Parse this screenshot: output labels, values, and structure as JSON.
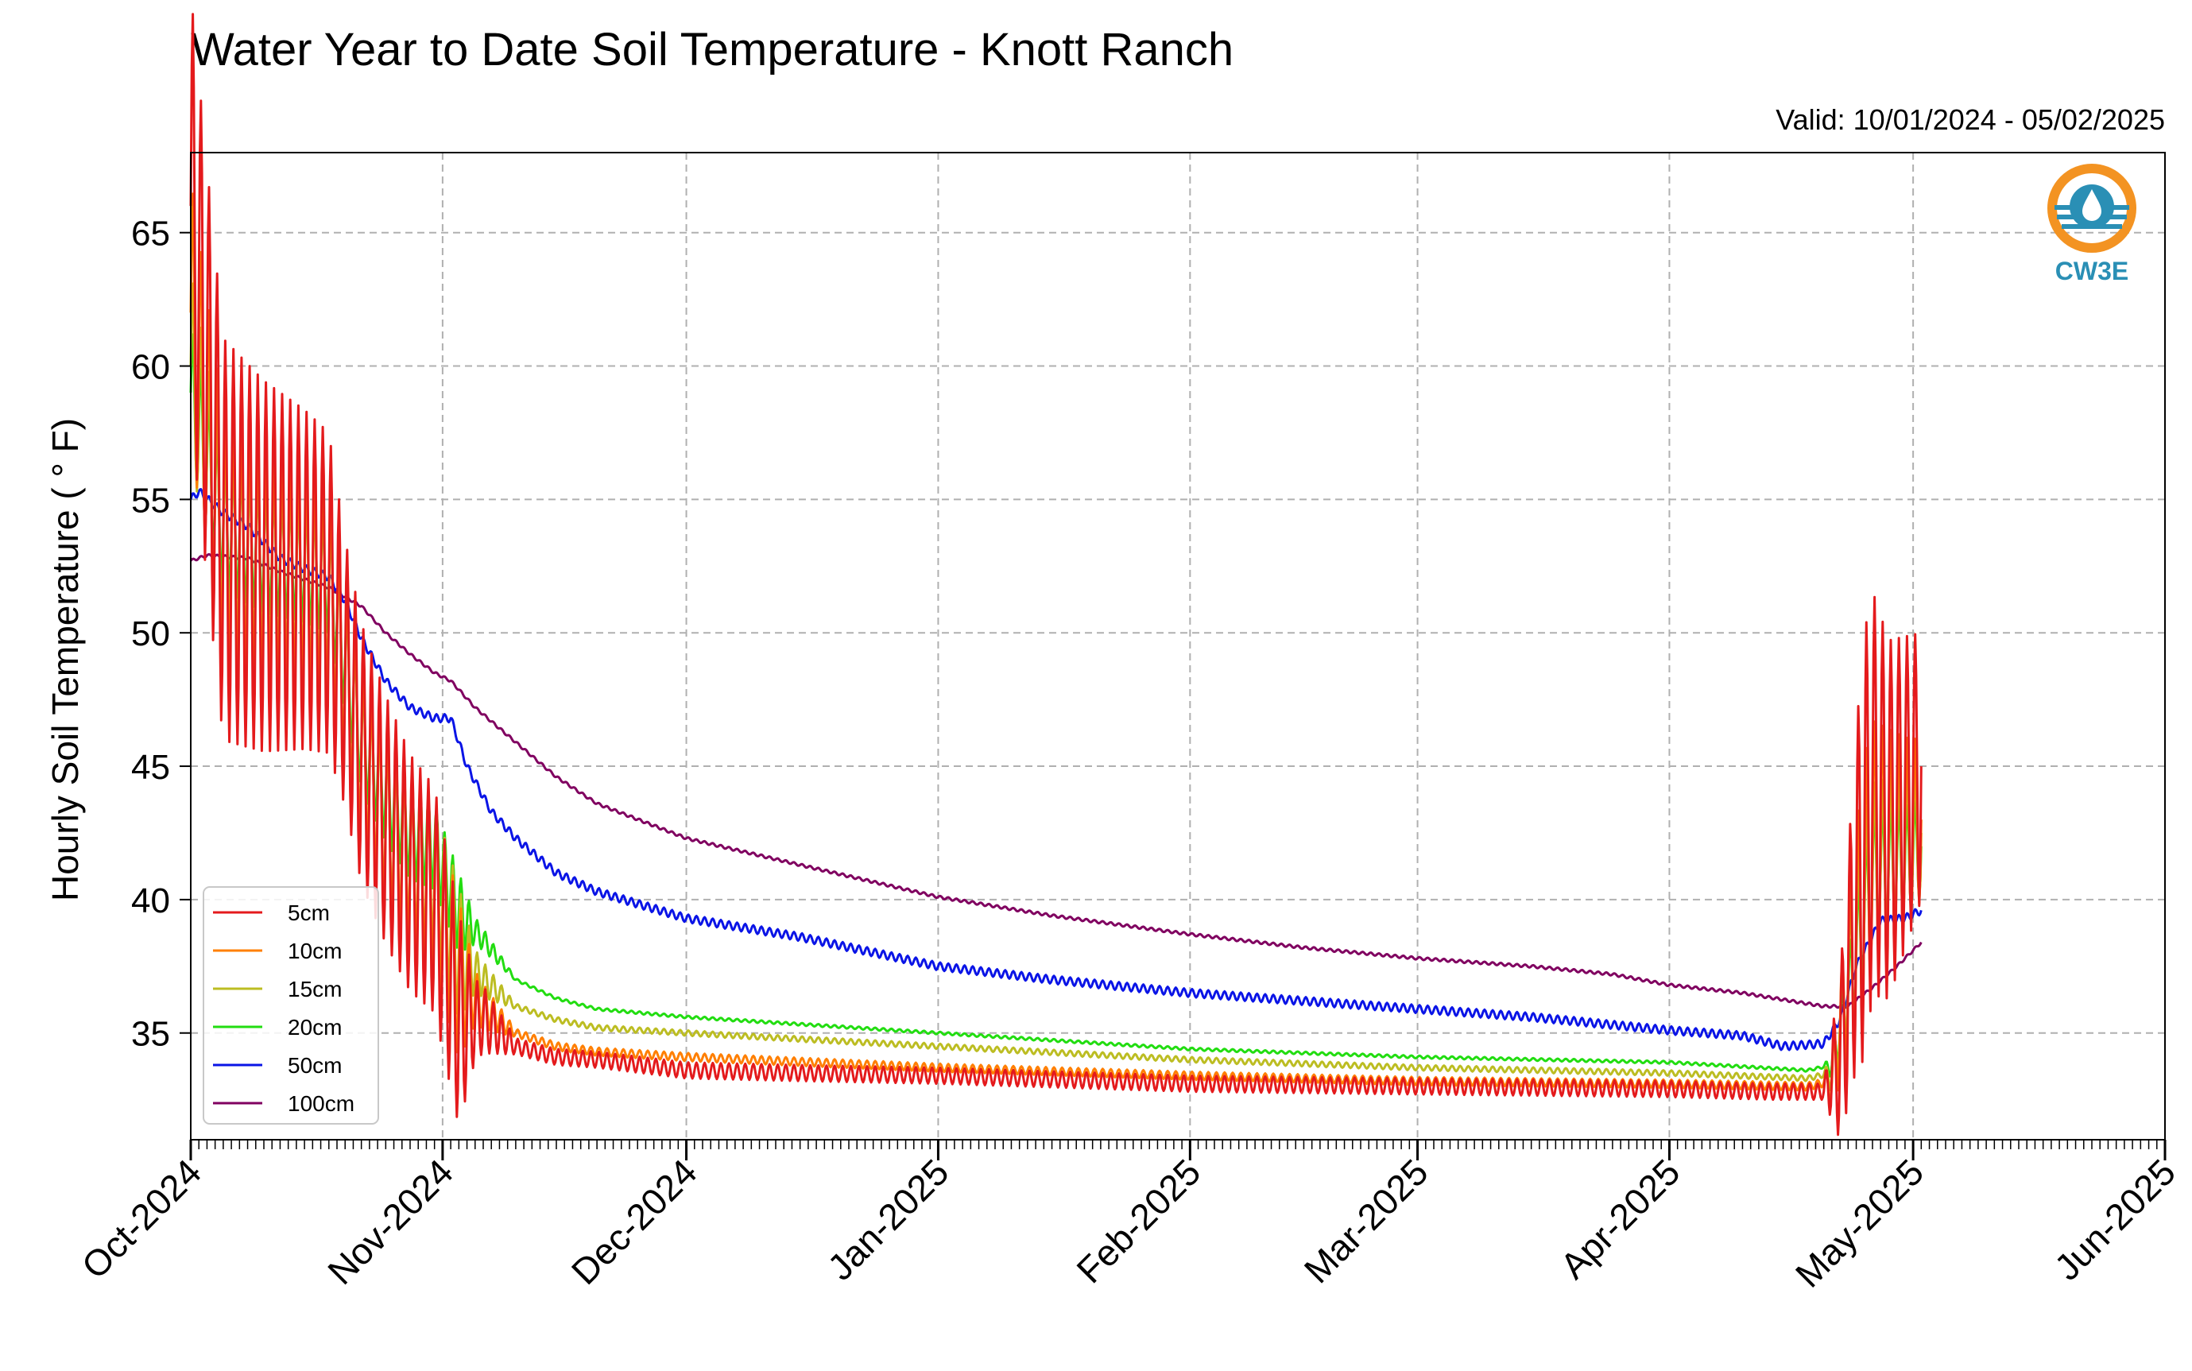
{
  "chart_data": {
    "type": "line",
    "title": "Water Year to Date Soil Temperature - Knott Ranch",
    "subtitle": "Valid: 10/01/2024 - 05/02/2025",
    "ylabel": "Hourly Soil Temperature ( $^\\circ$F)",
    "ylabel_display": "Hourly Soil Temperature ( ° F)",
    "xlabel": "",
    "xlim": [
      "2024-10-01",
      "2025-06-01"
    ],
    "ylim": [
      31,
      68
    ],
    "yticks": [
      35,
      40,
      45,
      50,
      55,
      60,
      65
    ],
    "xtick_labels": [
      "Oct-2024",
      "Nov-2024",
      "Dec-2024",
      "Jan-2025",
      "Feb-2025",
      "Mar-2025",
      "Apr-2025",
      "May-2025",
      "Jun-2025"
    ],
    "xtick_dates": [
      "2024-10-01",
      "2024-11-01",
      "2024-12-01",
      "2025-01-01",
      "2025-02-01",
      "2025-03-01",
      "2025-04-01",
      "2025-05-01",
      "2025-06-01"
    ],
    "grid": true,
    "legend_position": "lower-left",
    "logo_text": "CW3E",
    "series": [
      {
        "name": "5cm",
        "color": "#e41a1c",
        "points": [
          [
            "2024-10-01",
            66
          ],
          [
            "2024-10-05",
            53.5
          ],
          [
            "2024-10-10",
            52.5
          ],
          [
            "2024-10-15",
            52
          ],
          [
            "2024-10-18",
            51.5
          ],
          [
            "2024-10-22",
            45.5
          ],
          [
            "2024-10-25",
            43
          ],
          [
            "2024-10-28",
            41
          ],
          [
            "2024-10-31",
            40
          ],
          [
            "2024-11-03",
            35.5
          ],
          [
            "2024-11-06",
            35.5
          ],
          [
            "2024-11-10",
            34.5
          ],
          [
            "2024-11-15",
            34.1
          ],
          [
            "2024-11-20",
            34.0
          ],
          [
            "2024-12-01",
            33.6
          ],
          [
            "2024-12-15",
            33.5
          ],
          [
            "2025-01-01",
            33.4
          ],
          [
            "2025-02-01",
            33.1
          ],
          [
            "2025-03-01",
            33.0
          ],
          [
            "2025-04-01",
            32.9
          ],
          [
            "2025-04-14",
            32.8
          ],
          [
            "2025-04-20",
            32.8
          ],
          [
            "2025-04-22",
            34
          ],
          [
            "2025-04-24",
            40
          ],
          [
            "2025-04-26",
            44
          ],
          [
            "2025-04-28",
            43
          ],
          [
            "2025-04-30",
            44
          ],
          [
            "2025-05-02",
            45
          ]
        ],
        "diurnal_amplitude": [
          [
            "2024-10-01",
            8
          ],
          [
            "2024-10-18",
            6
          ],
          [
            "2024-10-20",
            5
          ],
          [
            "2024-11-03",
            4
          ],
          [
            "2024-11-05",
            1.5
          ],
          [
            "2024-11-10",
            0.3
          ],
          [
            "2025-04-20",
            0.3
          ],
          [
            "2025-04-22",
            3
          ],
          [
            "2025-04-25",
            8
          ],
          [
            "2025-05-02",
            5
          ]
        ]
      },
      {
        "name": "10cm",
        "color": "#ff7f00",
        "points": [
          [
            "2024-10-01",
            62
          ],
          [
            "2024-10-05",
            53.5
          ],
          [
            "2024-10-10",
            52.5
          ],
          [
            "2024-10-15",
            52
          ],
          [
            "2024-10-18",
            51.5
          ],
          [
            "2024-10-22",
            45.5
          ],
          [
            "2024-10-25",
            43
          ],
          [
            "2024-10-28",
            41.5
          ],
          [
            "2024-10-31",
            40.5
          ],
          [
            "2024-11-03",
            37
          ],
          [
            "2024-11-06",
            36
          ],
          [
            "2024-11-10",
            35
          ],
          [
            "2024-11-15",
            34.5
          ],
          [
            "2024-11-20",
            34.3
          ],
          [
            "2024-12-01",
            34.1
          ],
          [
            "2025-01-01",
            33.7
          ],
          [
            "2025-02-01",
            33.4
          ],
          [
            "2025-03-01",
            33.2
          ],
          [
            "2025-04-01",
            33.1
          ],
          [
            "2025-04-18",
            33.0
          ],
          [
            "2025-04-21",
            33.2
          ],
          [
            "2025-04-23",
            37
          ],
          [
            "2025-04-26",
            42
          ],
          [
            "2025-04-30",
            42.5
          ],
          [
            "2025-05-02",
            43
          ]
        ],
        "diurnal_amplitude": [
          [
            "2024-10-01",
            5
          ],
          [
            "2024-10-18",
            4
          ],
          [
            "2024-10-20",
            3.5
          ],
          [
            "2024-11-03",
            3
          ],
          [
            "2024-11-05",
            1
          ],
          [
            "2024-11-10",
            0.15
          ],
          [
            "2025-04-20",
            0.15
          ],
          [
            "2025-04-22",
            2
          ],
          [
            "2025-04-25",
            5
          ],
          [
            "2025-05-02",
            3
          ]
        ]
      },
      {
        "name": "15cm",
        "color": "#bcbd22",
        "points": [
          [
            "2024-10-01",
            60
          ],
          [
            "2024-10-05",
            53.5
          ],
          [
            "2024-10-10",
            52.5
          ],
          [
            "2024-10-15",
            52
          ],
          [
            "2024-10-18",
            51.5
          ],
          [
            "2024-10-22",
            45.5
          ],
          [
            "2024-10-25",
            43
          ],
          [
            "2024-10-28",
            41.5
          ],
          [
            "2024-10-31",
            41
          ],
          [
            "2024-11-03",
            38
          ],
          [
            "2024-11-06",
            37
          ],
          [
            "2024-11-10",
            36
          ],
          [
            "2024-11-15",
            35.5
          ],
          [
            "2024-11-20",
            35.2
          ],
          [
            "2024-12-01",
            35.0
          ],
          [
            "2025-01-01",
            34.5
          ],
          [
            "2025-02-01",
            34.0
          ],
          [
            "2025-03-01",
            33.7
          ],
          [
            "2025-04-01",
            33.5
          ],
          [
            "2025-04-18",
            33.3
          ],
          [
            "2025-04-21",
            33.5
          ],
          [
            "2025-04-23",
            37
          ],
          [
            "2025-04-26",
            41
          ],
          [
            "2025-04-30",
            42
          ],
          [
            "2025-05-02",
            42.5
          ]
        ],
        "diurnal_amplitude": [
          [
            "2024-10-01",
            3.5
          ],
          [
            "2024-10-18",
            3
          ],
          [
            "2024-10-20",
            3
          ],
          [
            "2024-11-03",
            2.5
          ],
          [
            "2024-11-05",
            0.8
          ],
          [
            "2024-11-10",
            0.1
          ],
          [
            "2025-04-20",
            0.1
          ],
          [
            "2025-04-22",
            1.5
          ],
          [
            "2025-04-25",
            3.5
          ],
          [
            "2025-05-02",
            2.5
          ]
        ]
      },
      {
        "name": "20cm",
        "color": "#22dd11",
        "points": [
          [
            "2024-10-01",
            59
          ],
          [
            "2024-10-05",
            54
          ],
          [
            "2024-10-10",
            53
          ],
          [
            "2024-10-15",
            52.5
          ],
          [
            "2024-10-18",
            52
          ],
          [
            "2024-10-22",
            46
          ],
          [
            "2024-10-25",
            44
          ],
          [
            "2024-10-28",
            42.5
          ],
          [
            "2024-10-31",
            42
          ],
          [
            "2024-11-03",
            39.5
          ],
          [
            "2024-11-06",
            38.5
          ],
          [
            "2024-11-10",
            37
          ],
          [
            "2024-11-15",
            36.3
          ],
          [
            "2024-11-20",
            35.9
          ],
          [
            "2024-12-01",
            35.6
          ],
          [
            "2025-01-01",
            35.0
          ],
          [
            "2025-02-01",
            34.4
          ],
          [
            "2025-03-01",
            34.1
          ],
          [
            "2025-04-01",
            33.9
          ],
          [
            "2025-04-18",
            33.6
          ],
          [
            "2025-04-21",
            33.8
          ],
          [
            "2025-04-23",
            36.5
          ],
          [
            "2025-04-26",
            41
          ],
          [
            "2025-04-30",
            41.5
          ],
          [
            "2025-05-02",
            42
          ]
        ],
        "diurnal_amplitude": [
          [
            "2024-10-01",
            2.5
          ],
          [
            "2024-10-18",
            2
          ],
          [
            "2024-10-20",
            2
          ],
          [
            "2024-11-03",
            1.5
          ],
          [
            "2024-11-05",
            0.5
          ],
          [
            "2024-11-10",
            0.05
          ],
          [
            "2025-04-20",
            0.05
          ],
          [
            "2025-04-22",
            1
          ],
          [
            "2025-04-25",
            2.5
          ],
          [
            "2025-05-02",
            1.8
          ]
        ]
      },
      {
        "name": "50cm",
        "color": "#0a14e6",
        "points": [
          [
            "2024-10-01",
            55
          ],
          [
            "2024-10-02",
            55.3
          ],
          [
            "2024-10-05",
            54.5
          ],
          [
            "2024-10-08",
            54
          ],
          [
            "2024-10-12",
            52.8
          ],
          [
            "2024-10-15",
            52.4
          ],
          [
            "2024-10-18",
            52.1
          ],
          [
            "2024-10-20",
            51.2
          ],
          [
            "2024-10-22",
            49.8
          ],
          [
            "2024-10-25",
            48.2
          ],
          [
            "2024-10-28",
            47.2
          ],
          [
            "2024-10-31",
            46.8
          ],
          [
            "2024-11-02",
            46.8
          ],
          [
            "2024-11-04",
            45
          ],
          [
            "2024-11-07",
            43.3
          ],
          [
            "2024-11-10",
            42.3
          ],
          [
            "2024-11-15",
            41.0
          ],
          [
            "2024-11-20",
            40.3
          ],
          [
            "2024-12-01",
            39.3
          ],
          [
            "2024-12-15",
            38.6
          ],
          [
            "2025-01-01",
            37.5
          ],
          [
            "2025-01-15",
            37.0
          ],
          [
            "2025-02-01",
            36.5
          ],
          [
            "2025-02-15",
            36.2
          ],
          [
            "2025-03-01",
            35.9
          ],
          [
            "2025-03-15",
            35.6
          ],
          [
            "2025-04-01",
            35.1
          ],
          [
            "2025-04-10",
            34.9
          ],
          [
            "2025-04-15",
            34.5
          ],
          [
            "2025-04-20",
            34.6
          ],
          [
            "2025-04-22",
            35.5
          ],
          [
            "2025-04-24",
            37.5
          ],
          [
            "2025-04-27",
            39.2
          ],
          [
            "2025-04-30",
            39.3
          ],
          [
            "2025-05-02",
            39.6
          ]
        ],
        "diurnal_amplitude": [
          [
            "2024-10-01",
            0.15
          ],
          [
            "2025-05-02",
            0.15
          ]
        ]
      },
      {
        "name": "100cm",
        "color": "#800060",
        "points": [
          [
            "2024-10-01",
            52.7
          ],
          [
            "2024-10-03",
            52.9
          ],
          [
            "2024-10-08",
            52.8
          ],
          [
            "2024-10-12",
            52.3
          ],
          [
            "2024-10-18",
            51.7
          ],
          [
            "2024-10-22",
            51.0
          ],
          [
            "2024-10-25",
            50.0
          ],
          [
            "2024-10-28",
            49.2
          ],
          [
            "2024-10-31",
            48.5
          ],
          [
            "2024-11-02",
            48.2
          ],
          [
            "2024-11-05",
            47.2
          ],
          [
            "2024-11-10",
            45.9
          ],
          [
            "2024-11-15",
            44.6
          ],
          [
            "2024-11-20",
            43.6
          ],
          [
            "2024-12-01",
            42.3
          ],
          [
            "2024-12-15",
            41.3
          ],
          [
            "2025-01-01",
            40.1
          ],
          [
            "2025-01-15",
            39.4
          ],
          [
            "2025-02-01",
            38.7
          ],
          [
            "2025-02-15",
            38.2
          ],
          [
            "2025-03-01",
            37.8
          ],
          [
            "2025-03-15",
            37.5
          ],
          [
            "2025-03-25",
            37.2
          ],
          [
            "2025-04-01",
            36.8
          ],
          [
            "2025-04-10",
            36.5
          ],
          [
            "2025-04-20",
            36.0
          ],
          [
            "2025-04-23",
            36.0
          ],
          [
            "2025-04-26",
            36.7
          ],
          [
            "2025-04-29",
            37.5
          ],
          [
            "2025-05-02",
            38.4
          ]
        ],
        "diurnal_amplitude": [
          [
            "2024-10-01",
            0.05
          ],
          [
            "2025-05-02",
            0.05
          ]
        ]
      }
    ]
  }
}
